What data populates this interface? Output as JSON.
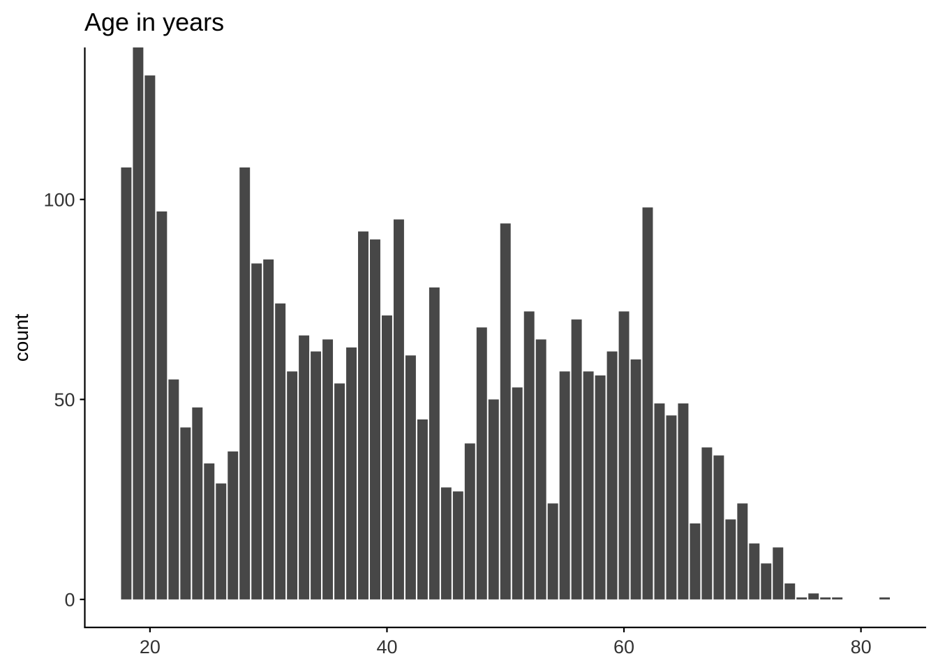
{
  "chart_data": {
    "type": "bar",
    "title": "Age in years",
    "xlabel": "",
    "ylabel": "count",
    "x": [
      18,
      19,
      20,
      21,
      22,
      23,
      24,
      25,
      26,
      27,
      28,
      29,
      30,
      31,
      32,
      33,
      34,
      35,
      36,
      37,
      38,
      39,
      40,
      41,
      42,
      43,
      44,
      45,
      46,
      47,
      48,
      49,
      50,
      51,
      52,
      53,
      54,
      55,
      56,
      57,
      58,
      59,
      60,
      61,
      62,
      63,
      64,
      65,
      66,
      67,
      68,
      69,
      70,
      71,
      72,
      73,
      74,
      75,
      76,
      77,
      78,
      82
    ],
    "values": [
      108,
      138,
      131,
      97,
      55,
      43,
      48,
      34,
      29,
      37,
      108,
      84,
      85,
      74,
      57,
      66,
      62,
      65,
      54,
      63,
      92,
      90,
      71,
      95,
      61,
      45,
      78,
      28,
      27,
      39,
      68,
      50,
      94,
      53,
      72,
      65,
      24,
      57,
      70,
      57,
      56,
      62,
      72,
      60,
      98,
      49,
      46,
      49,
      19,
      38,
      36,
      20,
      24,
      14,
      9,
      13,
      4,
      0.5,
      1.5,
      0.5,
      0.5,
      0.5
    ],
    "xlim": [
      14.5,
      85.5
    ],
    "ylim": [
      -7,
      138
    ],
    "xticks": [
      20,
      40,
      60,
      80
    ],
    "yticks": [
      0,
      50,
      100
    ],
    "grid": false,
    "bar_color": "#474747",
    "background": "#ffffff"
  }
}
